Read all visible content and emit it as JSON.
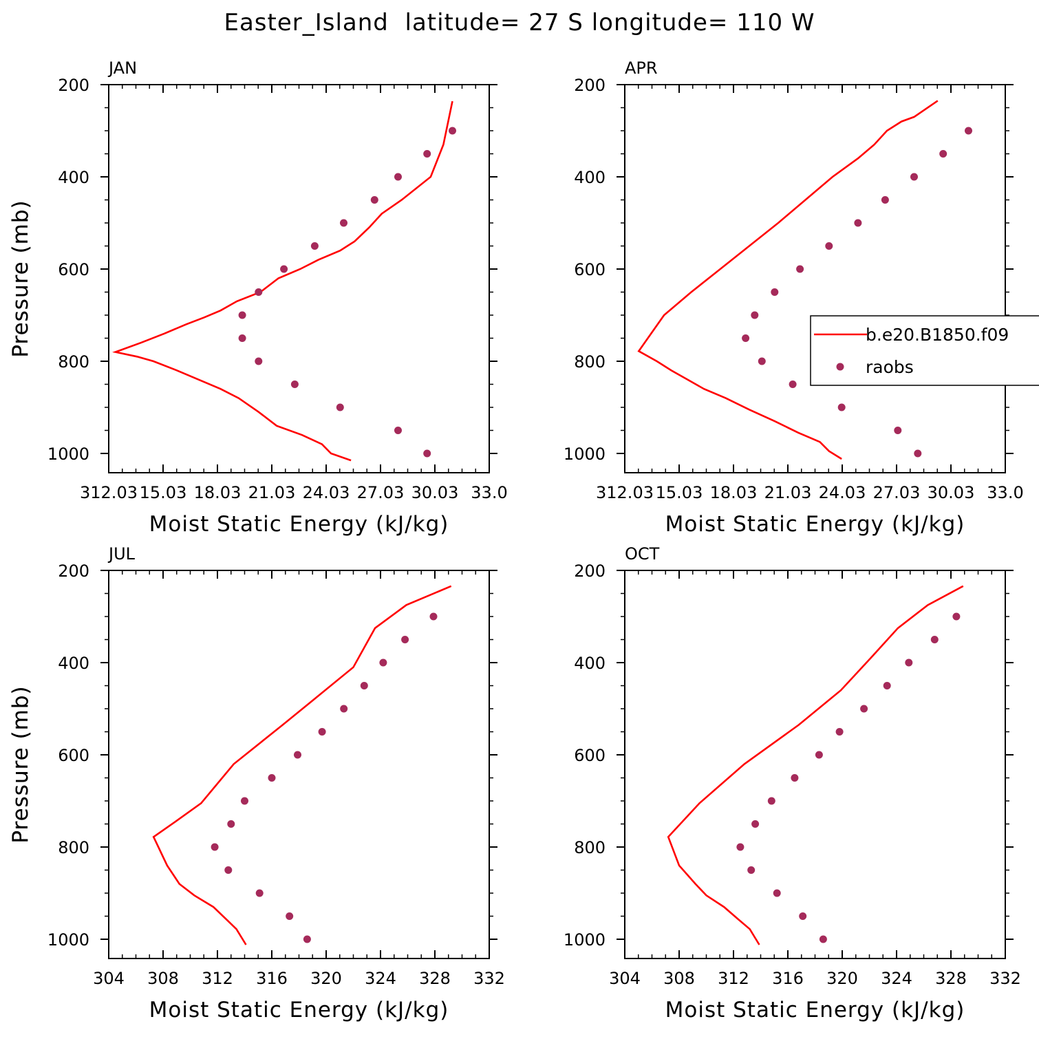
{
  "figure": {
    "title": "Easter_Island  latitude= 27 S longitude= 110 W",
    "colors": {
      "model": "#ff0000",
      "obs": "#a52a5a",
      "axes": "#000000"
    },
    "legend": {
      "model_label": "b.e20.B1850.f09",
      "obs_label": "raobs",
      "placement": "right-middle",
      "panel": 1
    }
  },
  "chart_data": [
    {
      "type": "line+scatter",
      "label": "JAN",
      "xlabel": "Moist Static Energy (kJ/kg)",
      "ylabel": "Pressure (mb)",
      "xlim": [
        312.03,
        333.03
      ],
      "ylim": [
        1000,
        200
      ],
      "x_tick_labels": [
        "312.03",
        "15.03",
        "18.03",
        "21.03",
        "24.03",
        "27.03",
        "30.03",
        "33.0"
      ],
      "y_ticks": [
        200,
        400,
        600,
        800,
        1000
      ],
      "series": [
        {
          "name": "b.e20.B1850.f09",
          "kind": "line",
          "x": [
            325.4,
            324.3,
            323.8,
            322.7,
            321.3,
            320.3,
            319.2,
            318.2,
            317.0,
            315.8,
            314.5,
            313.6,
            312.4,
            313.8,
            315.1,
            316.3,
            317.3,
            318.2,
            319.1,
            320.4,
            321.4,
            322.6,
            323.6,
            324.8,
            325.6,
            326.4,
            327.1,
            328.2,
            329.8,
            330.5,
            331.0
          ],
          "y": [
            1015,
            1000,
            980,
            960,
            940,
            910,
            880,
            860,
            840,
            820,
            800,
            790,
            780,
            760,
            740,
            720,
            705,
            690,
            670,
            650,
            620,
            600,
            580,
            560,
            540,
            510,
            480,
            450,
            400,
            330,
            236
          ]
        },
        {
          "name": "raobs",
          "kind": "scatter",
          "p": [
            300,
            350,
            400,
            450,
            500,
            550,
            600,
            650,
            700,
            750,
            800,
            850,
            900,
            950,
            1000
          ],
          "x": [
            331.0,
            329.6,
            328.0,
            326.7,
            325.0,
            323.4,
            321.7,
            320.3,
            319.4,
            319.4,
            320.3,
            322.3,
            324.8,
            328.0,
            329.6
          ]
        }
      ]
    },
    {
      "type": "line+scatter",
      "label": "APR",
      "xlabel": "Moist Static Energy (kJ/kg)",
      "ylabel": "Pressure (mb)",
      "xlim": [
        312.03,
        333.03
      ],
      "ylim": [
        1000,
        200
      ],
      "x_tick_labels": [
        "312.03",
        "15.03",
        "18.03",
        "21.03",
        "24.03",
        "27.03",
        "30.03",
        "33.0"
      ],
      "y_ticks": [
        200,
        400,
        600,
        800,
        1000
      ],
      "series": [
        {
          "name": "b.e20.B1850.f09",
          "kind": "line",
          "x": [
            324.0,
            323.3,
            322.8,
            321.6,
            320.3,
            318.9,
            317.6,
            316.4,
            315.5,
            314.6,
            313.8,
            312.8,
            314.2,
            315.7,
            317.3,
            318.9,
            320.5,
            322.0,
            323.5,
            324.9,
            325.8,
            326.5,
            327.3,
            328.0,
            329.3
          ],
          "y": [
            1012,
            995,
            975,
            955,
            930,
            905,
            880,
            860,
            840,
            820,
            800,
            778,
            700,
            650,
            600,
            550,
            500,
            450,
            400,
            360,
            330,
            300,
            280,
            270,
            235
          ]
        },
        {
          "name": "raobs",
          "kind": "scatter",
          "p": [
            300,
            350,
            400,
            450,
            500,
            550,
            600,
            650,
            700,
            750,
            800,
            850,
            900,
            950,
            1000
          ],
          "x": [
            331.0,
            329.6,
            328.0,
            326.4,
            324.9,
            323.3,
            321.7,
            320.3,
            319.2,
            318.7,
            319.6,
            321.3,
            324.0,
            327.1,
            328.2
          ]
        }
      ]
    },
    {
      "type": "line+scatter",
      "label": "JUL",
      "xlabel": "Moist Static Energy (kJ/kg)",
      "ylabel": "Pressure (mb)",
      "xlim": [
        304,
        332
      ],
      "ylim": [
        1000,
        200
      ],
      "x_tick_labels": [
        "304",
        "308",
        "312",
        "316",
        "320",
        "324",
        "328",
        "332"
      ],
      "y_ticks": [
        200,
        400,
        600,
        800,
        1000
      ],
      "series": [
        {
          "name": "b.e20.B1850.f09",
          "kind": "line",
          "x": [
            314.1,
            313.4,
            312.7,
            311.7,
            310.3,
            309.2,
            308.3,
            307.3,
            308.9,
            310.8,
            313.2,
            316.8,
            319.3,
            322.0,
            323.6,
            325.9,
            329.2
          ],
          "y": [
            1012,
            978,
            958,
            930,
            905,
            880,
            840,
            778,
            745,
            705,
            620,
            535,
            475,
            410,
            325,
            275,
            234
          ]
        },
        {
          "name": "raobs",
          "kind": "scatter",
          "p": [
            300,
            350,
            400,
            450,
            500,
            550,
            600,
            650,
            700,
            750,
            800,
            850,
            900,
            950,
            1000
          ],
          "x": [
            327.9,
            325.8,
            324.2,
            322.8,
            321.3,
            319.7,
            317.9,
            316.0,
            314.0,
            313.0,
            311.8,
            312.8,
            315.1,
            317.3,
            318.6
          ]
        }
      ]
    },
    {
      "type": "line+scatter",
      "label": "OCT",
      "xlabel": "Moist Static Energy (kJ/kg)",
      "ylabel": "Pressure (mb)",
      "xlim": [
        304,
        332
      ],
      "ylim": [
        1000,
        200
      ],
      "x_tick_labels": [
        "304",
        "308",
        "312",
        "316",
        "320",
        "324",
        "328",
        "332"
      ],
      "y_ticks": [
        200,
        400,
        600,
        800,
        1000
      ],
      "series": [
        {
          "name": "b.e20.B1850.f09",
          "kind": "line",
          "x": [
            313.9,
            313.2,
            312.4,
            311.3,
            310.0,
            309.2,
            308.0,
            307.2,
            309.5,
            312.8,
            316.8,
            319.9,
            322.1,
            324.1,
            326.3,
            328.9
          ],
          "y": [
            1012,
            978,
            958,
            930,
            905,
            880,
            840,
            778,
            705,
            620,
            535,
            460,
            390,
            325,
            275,
            234
          ]
        },
        {
          "name": "raobs",
          "kind": "scatter",
          "p": [
            300,
            350,
            400,
            450,
            500,
            550,
            600,
            650,
            700,
            750,
            800,
            850,
            900,
            950,
            1000
          ],
          "x": [
            328.4,
            326.8,
            324.9,
            323.3,
            321.6,
            319.8,
            318.3,
            316.5,
            314.8,
            313.6,
            312.5,
            313.3,
            315.2,
            317.1,
            318.6
          ]
        }
      ]
    }
  ]
}
